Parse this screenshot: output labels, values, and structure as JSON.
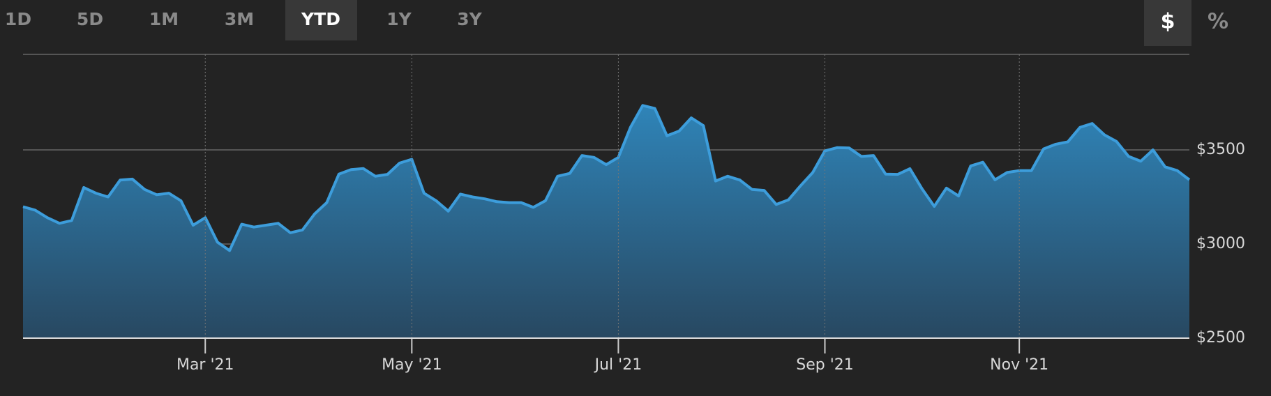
{
  "range_buttons": [
    {
      "label": "1D"
    },
    {
      "label": "5D"
    },
    {
      "label": "1M"
    },
    {
      "label": "3M"
    },
    {
      "label": "YTD",
      "selected": true
    },
    {
      "label": "1Y"
    },
    {
      "label": "3Y"
    }
  ],
  "unit_buttons": [
    {
      "label": "$",
      "selected": true
    },
    {
      "label": "%"
    }
  ],
  "chart_data": {
    "type": "area",
    "categories": [
      null,
      null,
      null,
      null,
      null,
      null,
      null,
      null,
      null,
      null,
      null,
      null,
      null,
      null,
      null,
      "Mar '21",
      null,
      null,
      null,
      null,
      null,
      null,
      null,
      null,
      null,
      null,
      null,
      null,
      null,
      null,
      null,
      null,
      "May '21",
      null,
      null,
      null,
      null,
      null,
      null,
      null,
      null,
      null,
      null,
      null,
      null,
      null,
      null,
      null,
      null,
      "Jul '21",
      null,
      null,
      null,
      null,
      null,
      null,
      null,
      null,
      null,
      null,
      null,
      null,
      null,
      null,
      null,
      null,
      "Sep '21",
      null,
      null,
      null,
      null,
      null,
      null,
      null,
      null,
      null,
      null,
      null,
      null,
      null,
      null,
      null,
      "Nov '21",
      null,
      null,
      null,
      null,
      null,
      null,
      null,
      null,
      null,
      null,
      null,
      null,
      null,
      null
    ],
    "values": [
      3198,
      3180,
      3140,
      3110,
      3125,
      3300,
      3270,
      3250,
      3340,
      3345,
      3290,
      3262,
      3270,
      3230,
      3100,
      3140,
      3010,
      2965,
      3105,
      3090,
      3100,
      3110,
      3060,
      3075,
      3160,
      3220,
      3371,
      3395,
      3401,
      3360,
      3370,
      3430,
      3450,
      3270,
      3230,
      3175,
      3265,
      3250,
      3240,
      3225,
      3220,
      3220,
      3195,
      3230,
      3360,
      3375,
      3470,
      3460,
      3422,
      3460,
      3620,
      3736,
      3720,
      3575,
      3600,
      3670,
      3629,
      3335,
      3360,
      3340,
      3290,
      3285,
      3210,
      3235,
      3310,
      3380,
      3495,
      3512,
      3510,
      3465,
      3470,
      3371,
      3370,
      3400,
      3293,
      3200,
      3297,
      3255,
      3415,
      3435,
      3341,
      3380,
      3390,
      3390,
      3505,
      3530,
      3543,
      3620,
      3640,
      3580,
      3545,
      3465,
      3440,
      3500,
      3410,
      3390,
      3341
    ],
    "color": "#3d9ddb",
    "ylim": [
      2500,
      4000
    ],
    "yticks": [
      {
        "value": 2500,
        "label": "$2500"
      },
      {
        "value": 3000,
        "label": "$3000"
      },
      {
        "value": 3500,
        "label": "$3500"
      }
    ],
    "grid": true
  }
}
